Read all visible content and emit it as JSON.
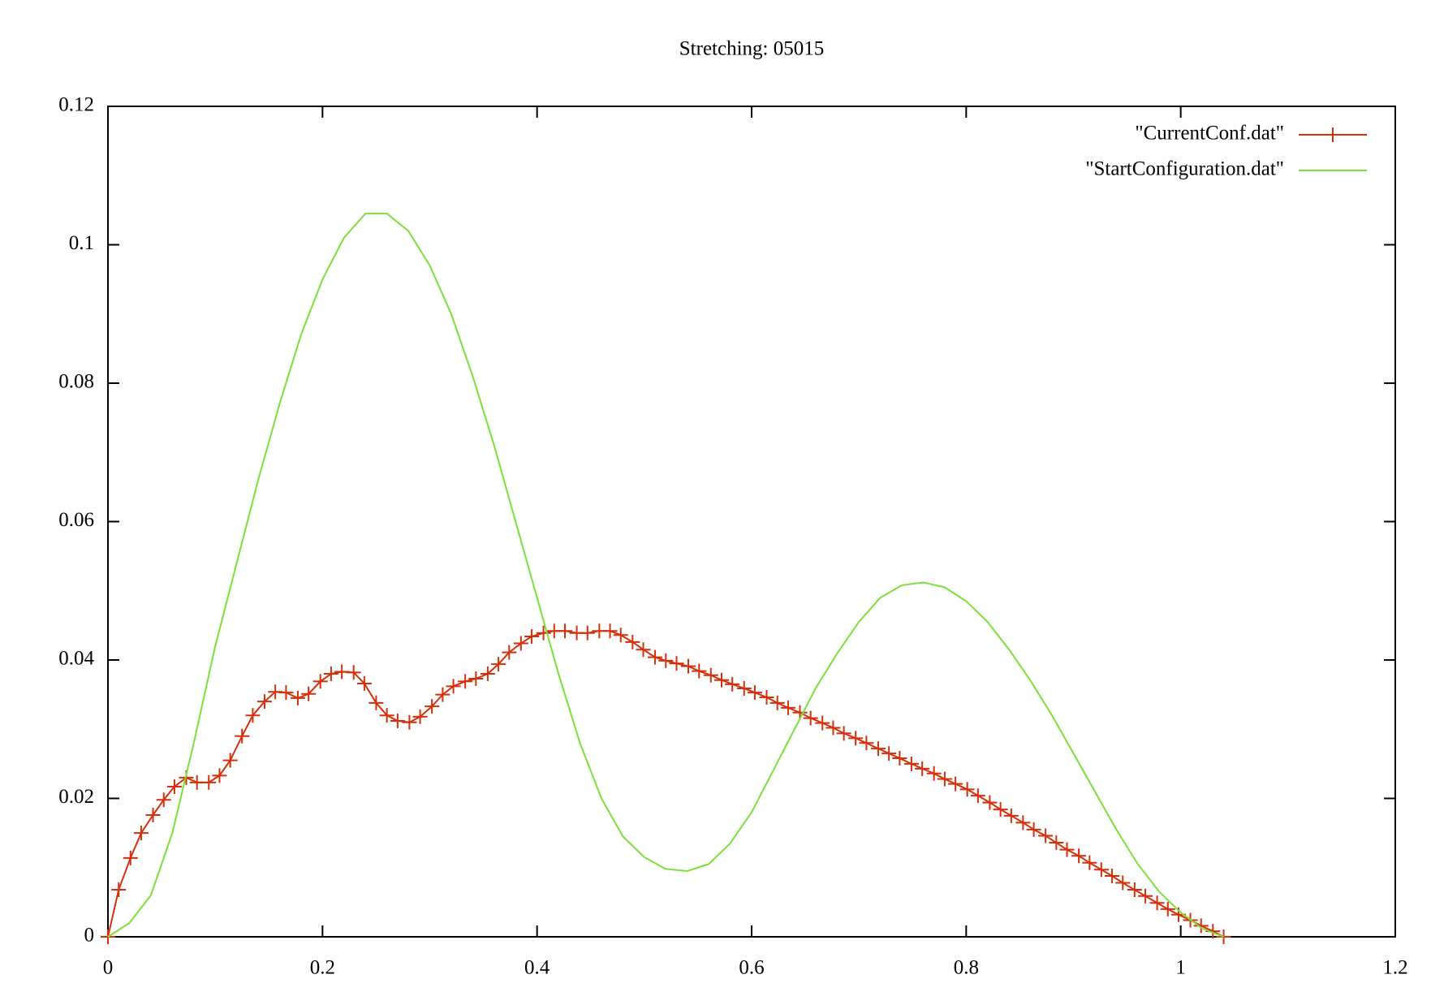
{
  "chart_data": {
    "type": "line",
    "title": "Stretching: 05015",
    "xlim": [
      0,
      1.2
    ],
    "xticks": [
      0,
      0.2,
      0.4,
      0.6,
      0.8,
      1,
      1.2
    ],
    "ylim": [
      0,
      0.12
    ],
    "yticks": [
      0,
      0.02,
      0.04,
      0.06,
      0.08,
      0.1,
      0.12
    ],
    "legend": "top-right",
    "series": [
      {
        "name": "\"CurrentConf.dat\"",
        "color": "#d62f0c",
        "marker": "+",
        "x": [
          0,
          0.01,
          0.021,
          0.031,
          0.042,
          0.052,
          0.062,
          0.073,
          0.083,
          0.094,
          0.104,
          0.114,
          0.125,
          0.135,
          0.146,
          0.156,
          0.166,
          0.177,
          0.187,
          0.198,
          0.208,
          0.218,
          0.229,
          0.239,
          0.25,
          0.26,
          0.27,
          0.281,
          0.291,
          0.302,
          0.312,
          0.322,
          0.333,
          0.343,
          0.354,
          0.364,
          0.374,
          0.385,
          0.395,
          0.406,
          0.416,
          0.426,
          0.437,
          0.447,
          0.458,
          0.468,
          0.478,
          0.489,
          0.499,
          0.51,
          0.52,
          0.53,
          0.541,
          0.551,
          0.562,
          0.572,
          0.582,
          0.593,
          0.603,
          0.614,
          0.624,
          0.634,
          0.645,
          0.655,
          0.666,
          0.676,
          0.686,
          0.697,
          0.707,
          0.718,
          0.728,
          0.738,
          0.749,
          0.759,
          0.77,
          0.78,
          0.79,
          0.801,
          0.811,
          0.822,
          0.832,
          0.842,
          0.853,
          0.863,
          0.874,
          0.884,
          0.894,
          0.905,
          0.915,
          0.926,
          0.936,
          0.946,
          0.957,
          0.967,
          0.978,
          0.988,
          0.998,
          1.009,
          1.019,
          1.03,
          1.04
        ],
        "values": [
          0,
          0.0068,
          0.0114,
          0.015,
          0.0176,
          0.0198,
          0.0217,
          0.023,
          0.0223,
          0.0223,
          0.0233,
          0.0255,
          0.029,
          0.032,
          0.034,
          0.0354,
          0.0353,
          0.0345,
          0.0351,
          0.0369,
          0.038,
          0.0383,
          0.0382,
          0.0366,
          0.0338,
          0.032,
          0.0312,
          0.031,
          0.0318,
          0.0333,
          0.035,
          0.0362,
          0.0369,
          0.0373,
          0.038,
          0.0394,
          0.0411,
          0.0424,
          0.0434,
          0.0439,
          0.0442,
          0.0442,
          0.0439,
          0.0439,
          0.0442,
          0.0442,
          0.0436,
          0.0426,
          0.0415,
          0.0404,
          0.0399,
          0.0395,
          0.0391,
          0.0384,
          0.0378,
          0.0371,
          0.0365,
          0.0359,
          0.0353,
          0.0346,
          0.0338,
          0.0331,
          0.0324,
          0.0316,
          0.0309,
          0.0302,
          0.0294,
          0.0287,
          0.028,
          0.0272,
          0.0265,
          0.0258,
          0.025,
          0.0243,
          0.0236,
          0.0228,
          0.0221,
          0.0213,
          0.0204,
          0.0194,
          0.0184,
          0.0175,
          0.0165,
          0.0155,
          0.0146,
          0.0136,
          0.0126,
          0.0117,
          0.0107,
          0.0097,
          0.0088,
          0.0078,
          0.0068,
          0.0059,
          0.0049,
          0.004,
          0.0032,
          0.0024,
          0.0016,
          0.0008,
          0
        ]
      },
      {
        "name": "\"StartConfiguration.dat\"",
        "color": "#7be03a",
        "x": [
          0,
          0.02,
          0.04,
          0.06,
          0.08,
          0.1,
          0.12,
          0.14,
          0.16,
          0.18,
          0.2,
          0.22,
          0.24,
          0.26,
          0.28,
          0.3,
          0.32,
          0.34,
          0.36,
          0.38,
          0.4,
          0.42,
          0.44,
          0.46,
          0.48,
          0.5,
          0.52,
          0.54,
          0.56,
          0.58,
          0.6,
          0.62,
          0.64,
          0.66,
          0.68,
          0.7,
          0.72,
          0.74,
          0.76,
          0.78,
          0.8,
          0.82,
          0.84,
          0.86,
          0.88,
          0.9,
          0.92,
          0.94,
          0.96,
          0.98,
          1,
          1.02,
          1.04
        ],
        "values": [
          0,
          0.002,
          0.006,
          0.015,
          0.028,
          0.042,
          0.054,
          0.066,
          0.077,
          0.087,
          0.095,
          0.101,
          0.1045,
          0.1045,
          0.102,
          0.097,
          0.09,
          0.081,
          0.071,
          0.06,
          0.049,
          0.038,
          0.028,
          0.02,
          0.0145,
          0.0115,
          0.0098,
          0.0095,
          0.0105,
          0.0135,
          0.018,
          0.024,
          0.03,
          0.036,
          0.041,
          0.0455,
          0.049,
          0.0508,
          0.0512,
          0.0505,
          0.0485,
          0.0455,
          0.0415,
          0.037,
          0.032,
          0.0265,
          0.021,
          0.0155,
          0.0105,
          0.0065,
          0.0035,
          0.0012,
          0
        ]
      }
    ]
  }
}
